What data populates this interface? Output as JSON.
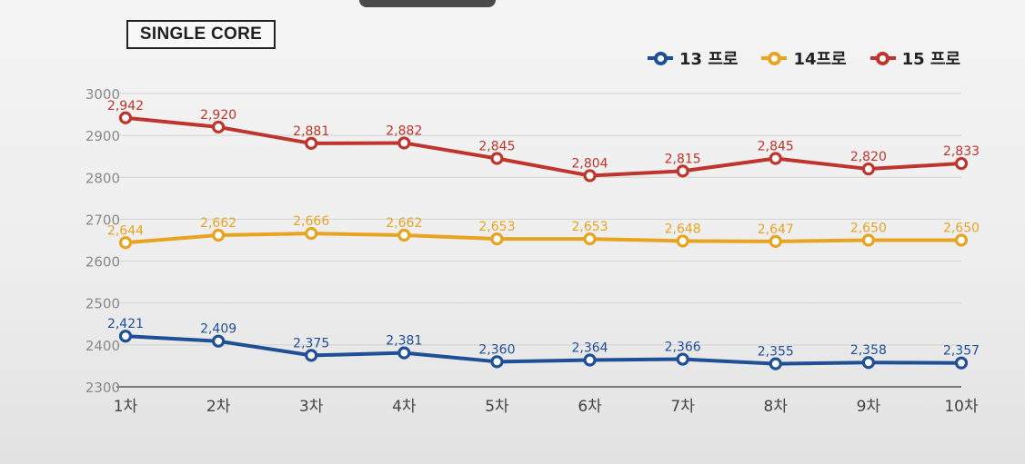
{
  "chart_data": {
    "type": "line",
    "title": "SINGLE CORE",
    "categories": [
      "1차",
      "2차",
      "3차",
      "4차",
      "5차",
      "6차",
      "7차",
      "8차",
      "9차",
      "10차"
    ],
    "ylim": [
      2300,
      3000
    ],
    "yticks": [
      2300,
      2400,
      2500,
      2600,
      2700,
      2800,
      2900,
      3000
    ],
    "ytick_labels": [
      "2300",
      "2400",
      "2500",
      "2600",
      "2700",
      "2800",
      "2900",
      "3000"
    ],
    "grid": true,
    "legend_position": "top-right",
    "series": [
      {
        "name": "13 프로",
        "color": "#1f4f96",
        "values": [
          2421,
          2409,
          2375,
          2381,
          2360,
          2364,
          2366,
          2355,
          2358,
          2357
        ],
        "labels": [
          "2,421",
          "2,409",
          "2,375",
          "2,381",
          "2,360",
          "2,364",
          "2,366",
          "2,355",
          "2,358",
          "2,357"
        ]
      },
      {
        "name": "14프로",
        "color": "#e8a421",
        "values": [
          2644,
          2662,
          2666,
          2662,
          2653,
          2653,
          2648,
          2647,
          2650,
          2650
        ],
        "labels": [
          "2,644",
          "2,662",
          "2,666",
          "2,662",
          "2,653",
          "2,653",
          "2,648",
          "2,647",
          "2,650",
          "2,650"
        ]
      },
      {
        "name": "15 프로",
        "color": "#bf342c",
        "values": [
          2942,
          2920,
          2881,
          2882,
          2845,
          2804,
          2815,
          2845,
          2820,
          2833
        ],
        "labels": [
          "2,942",
          "2,920",
          "2,881",
          "2,882",
          "2,845",
          "2,804",
          "2,815",
          "2,845",
          "2,820",
          "2,833"
        ]
      }
    ]
  }
}
